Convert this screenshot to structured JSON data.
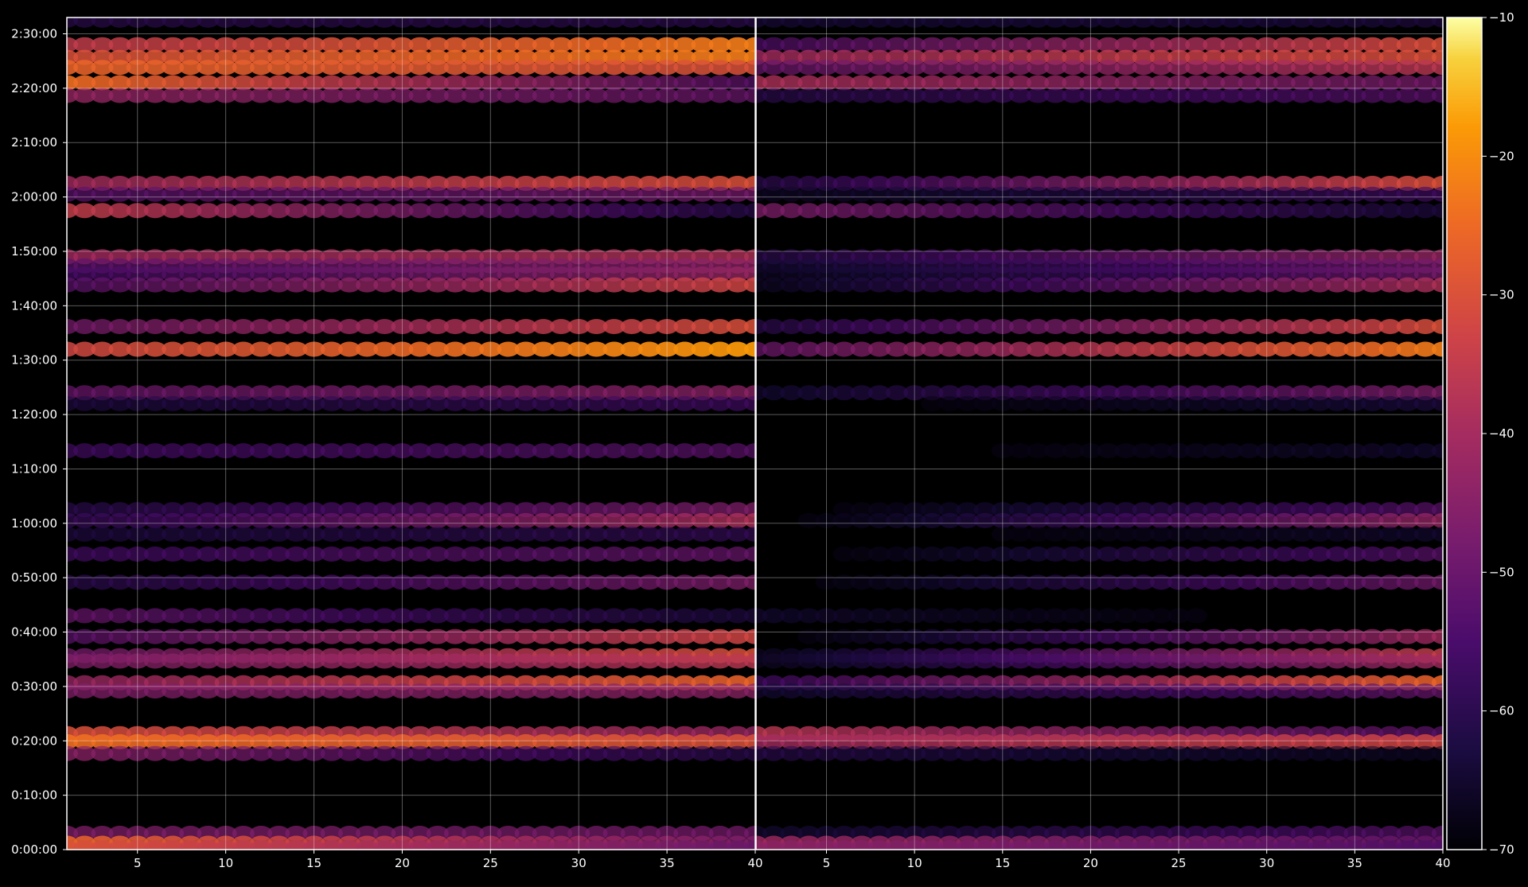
{
  "chart_data": {
    "type": "heatmap",
    "title": "",
    "xlabel": "",
    "ylabel": "",
    "colormap": "inferno",
    "background": "#000000",
    "grid": true,
    "panels": [
      {
        "name": "",
        "xlim": [
          1,
          40
        ],
        "x_ticks": [
          5,
          10,
          15,
          20,
          25,
          30,
          35,
          40
        ],
        "x_tick_labels": [
          "5",
          "10",
          "15",
          "20",
          "25",
          "30",
          "35",
          "40"
        ]
      },
      {
        "name": "",
        "xlim": [
          1,
          40
        ],
        "x_ticks": [
          5,
          10,
          15,
          20,
          25,
          30,
          35,
          40
        ],
        "x_tick_labels": [
          "5",
          "10",
          "15",
          "20",
          "25",
          "30",
          "35",
          "40"
        ]
      }
    ],
    "y_ticks_seconds": [
      0,
      600,
      1200,
      1800,
      2400,
      3000,
      3600,
      4200,
      4800,
      5400,
      6000,
      6600,
      7200,
      7800,
      8400,
      9000
    ],
    "y_tick_labels": [
      "0:00:00",
      "0:10:00",
      "0:20:00",
      "0:30:00",
      "0:40:00",
      "0:50:00",
      "1:00:00",
      "1:10:00",
      "1:20:00",
      "1:30:00",
      "1:40:00",
      "1:50:00",
      "2:00:00",
      "2:10:00",
      "2:20:00",
      "2:30:00"
    ],
    "ylim_seconds": [
      0,
      9180
    ],
    "colorbar": {
      "range": [
        -70,
        -10
      ],
      "ticks": [
        -70,
        -60,
        -50,
        -40,
        -30,
        -20,
        -10
      ],
      "tick_labels": [
        "−70",
        "−60",
        "−50",
        "−40",
        "−30",
        "−20",
        "−10"
      ]
    },
    "bands": [
      {
        "t": 9150,
        "p1": [
          -60,
          -60
        ],
        "p2": [
          -63,
          -62
        ]
      },
      {
        "t": 8880,
        "p1": [
          -35,
          -22
        ],
        "p2": [
          -54,
          -30
        ]
      },
      {
        "t": 8740,
        "p1": [
          -30,
          -22
        ],
        "p2": [
          -40,
          -30
        ]
      },
      {
        "t": 8630,
        "p1": [
          -26,
          -30
        ],
        "p2": [
          -50,
          -36
        ]
      },
      {
        "t": 8460,
        "p1": [
          -24,
          -52
        ],
        "p2": [
          -38,
          -48
        ]
      },
      {
        "t": 8320,
        "p1": [
          -42,
          -50
        ],
        "p2": [
          -60,
          -52
        ]
      },
      {
        "t": 7350,
        "p1": [
          -40,
          -30
        ],
        "p2": [
          -60,
          -30
        ]
      },
      {
        "t": 7230,
        "p1": [
          -52,
          -48
        ],
        "p2": [
          -66,
          -56
        ]
      },
      {
        "t": 7050,
        "p1": [
          -34,
          -60
        ],
        "p2": [
          -46,
          -62
        ]
      },
      {
        "t": 6540,
        "p1": [
          -40,
          -38
        ],
        "p2": [
          -60,
          -42
        ]
      },
      {
        "t": 6440,
        "p1": [
          -52,
          -44
        ],
        "p2": [
          -64,
          -48
        ]
      },
      {
        "t": 6350,
        "p1": [
          -55,
          -42
        ],
        "p2": [
          -66,
          -48
        ]
      },
      {
        "t": 6230,
        "p1": [
          -52,
          -32
        ],
        "p2": [
          -66,
          -38
        ]
      },
      {
        "t": 5770,
        "p1": [
          -48,
          -30
        ],
        "p2": [
          -60,
          -30
        ]
      },
      {
        "t": 5520,
        "p1": [
          -32,
          -18
        ],
        "p2": [
          -50,
          -22
        ]
      },
      {
        "t": 5040,
        "p1": [
          -50,
          -44
        ],
        "p2": [
          -64,
          -46
        ]
      },
      {
        "t": 4920,
        "p1": [
          -62,
          -56
        ],
        "p2": [
          -70,
          -62
        ]
      },
      {
        "t": 4400,
        "p1": [
          -56,
          -52
        ],
        "p2": [
          -70,
          -64
        ]
      },
      {
        "t": 3750,
        "p1": [
          -60,
          -46
        ],
        "p2": [
          -70,
          -52
        ]
      },
      {
        "t": 3630,
        "p1": [
          -58,
          -38
        ],
        "p2": [
          -70,
          -42
        ]
      },
      {
        "t": 3480,
        "p1": [
          -62,
          -58
        ],
        "p2": [
          -70,
          -64
        ]
      },
      {
        "t": 3260,
        "p1": [
          -56,
          -50
        ],
        "p2": [
          -70,
          -52
        ]
      },
      {
        "t": 2950,
        "p1": [
          -60,
          -46
        ],
        "p2": [
          -70,
          -48
        ]
      },
      {
        "t": 2580,
        "p1": [
          -50,
          -62
        ],
        "p2": [
          -64,
          -70
        ]
      },
      {
        "t": 2350,
        "p1": [
          -52,
          -32
        ],
        "p2": [
          -70,
          -40
        ]
      },
      {
        "t": 2140,
        "p1": [
          -48,
          -30
        ],
        "p2": [
          -66,
          -34
        ]
      },
      {
        "t": 2080,
        "p1": [
          -46,
          -36
        ],
        "p2": [
          -66,
          -40
        ]
      },
      {
        "t": 1840,
        "p1": [
          -42,
          -26
        ],
        "p2": [
          -56,
          -26
        ]
      },
      {
        "t": 1750,
        "p1": [
          -46,
          -44
        ],
        "p2": [
          -64,
          -50
        ]
      },
      {
        "t": 1280,
        "p1": [
          -30,
          -42
        ],
        "p2": [
          -36,
          -52
        ]
      },
      {
        "t": 1190,
        "p1": [
          -24,
          -30
        ],
        "p2": [
          -40,
          -32
        ]
      },
      {
        "t": 1060,
        "p1": [
          -44,
          -60
        ],
        "p2": [
          -60,
          -66
        ]
      },
      {
        "t": 180,
        "p1": [
          -46,
          -48
        ],
        "p2": [
          -64,
          -52
        ]
      },
      {
        "t": 70,
        "p1": [
          -26,
          -46
        ],
        "p2": [
          -40,
          -50
        ]
      },
      {
        "t": 20,
        "p1": [
          -30,
          -50
        ],
        "p2": [
          -44,
          -54
        ]
      }
    ]
  }
}
